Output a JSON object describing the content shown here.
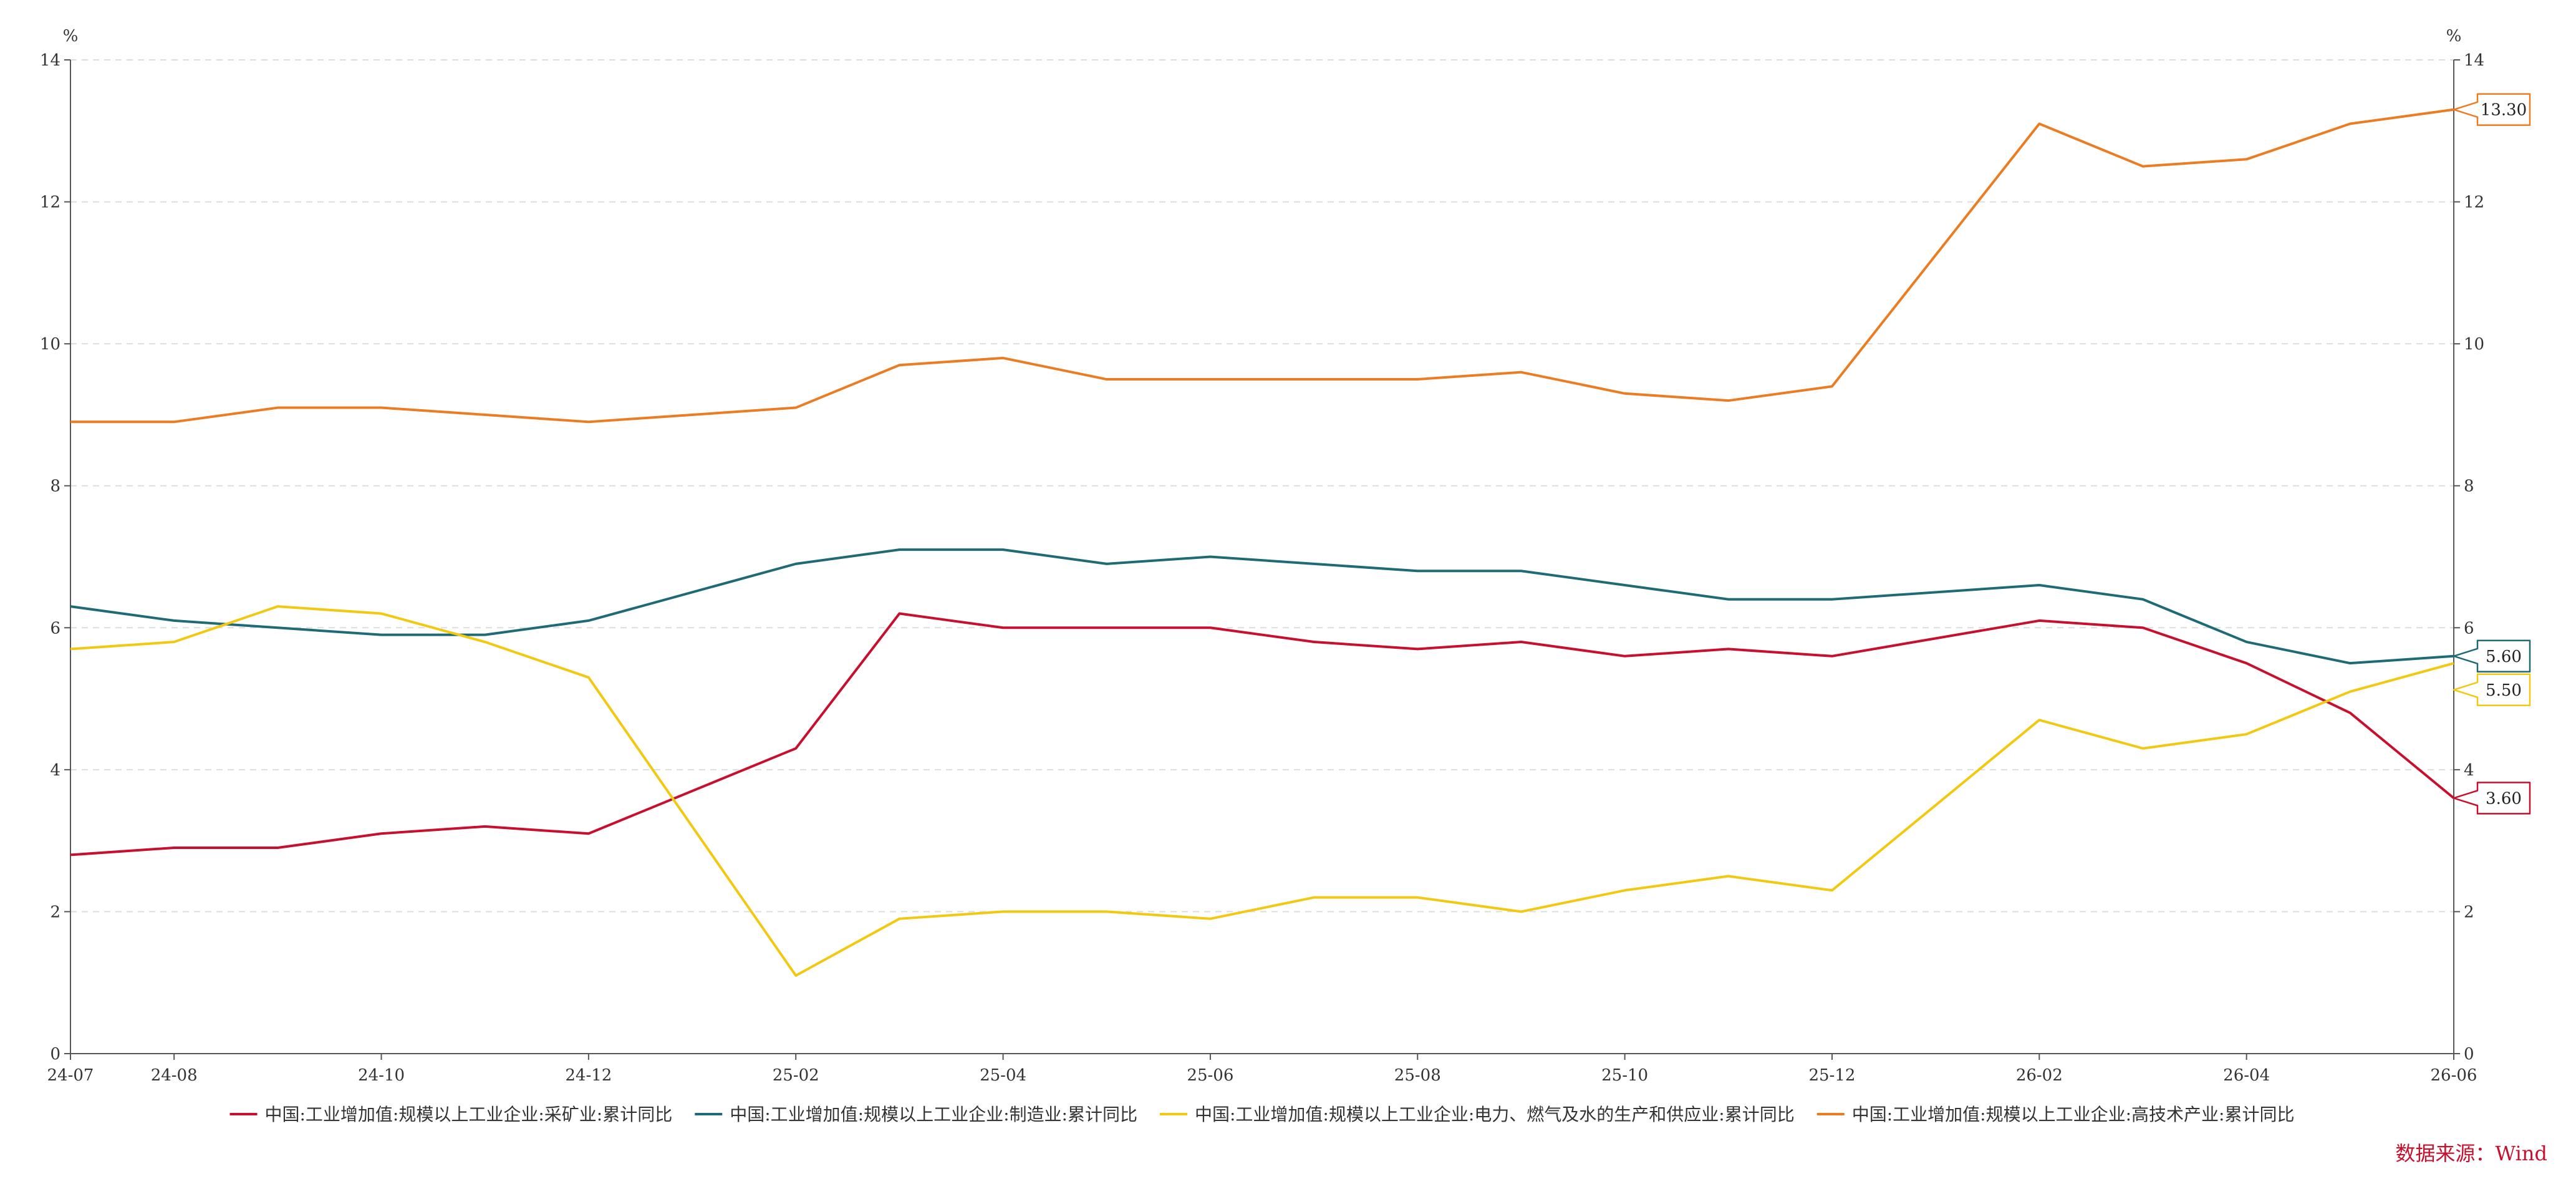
{
  "chart_data": {
    "type": "line",
    "title": "",
    "unit_left": "%",
    "unit_right": "%",
    "categories": [
      "24-07",
      "24-08",
      "24-09",
      "24-10",
      "24-11",
      "24-12",
      "25-01",
      "25-02",
      "25-03",
      "25-04",
      "25-05",
      "25-06",
      "25-07",
      "25-08",
      "25-09",
      "25-10",
      "25-11",
      "25-12",
      "26-01",
      "26-02",
      "26-03",
      "26-04",
      "26-05",
      "26-06"
    ],
    "x_tick_labels": [
      "24-07",
      "24-08",
      "24-10",
      "24-12",
      "25-02",
      "25-04",
      "25-06",
      "25-08",
      "25-10",
      "25-12",
      "26-02",
      "26-04",
      "26-06"
    ],
    "ylim": [
      0,
      14
    ],
    "y_ticks": [
      0,
      2,
      4,
      6,
      8,
      10,
      12,
      14
    ],
    "grid": "horizontal-dashed",
    "legend_position": "bottom",
    "series": [
      {
        "name": "中国:工业增加值:规模以上工业企业:采矿业:累计同比",
        "color": "#c8102e",
        "values": [
          2.8,
          2.9,
          2.9,
          3.1,
          3.2,
          3.1,
          null,
          4.3,
          6.2,
          6.0,
          6.0,
          6.0,
          5.8,
          5.7,
          5.8,
          5.6,
          5.7,
          5.6,
          null,
          6.1,
          6.0,
          5.5,
          4.8,
          3.6
        ],
        "end_label": "3.60"
      },
      {
        "name": "中国:工业增加值:规模以上工业企业:制造业:累计同比",
        "color": "#1f6b75",
        "values": [
          6.3,
          6.1,
          6.0,
          5.9,
          5.9,
          6.1,
          null,
          6.9,
          7.1,
          7.1,
          6.9,
          7.0,
          6.9,
          6.8,
          6.8,
          6.6,
          6.4,
          6.4,
          null,
          6.6,
          6.4,
          5.8,
          5.5,
          5.6
        ],
        "end_label": "5.60"
      },
      {
        "name": "中国:工业增加值:规模以上工业企业:电力、燃气及水的生产和供应业:累计同比",
        "color": "#f2c811",
        "values": [
          5.7,
          5.8,
          6.3,
          6.2,
          5.8,
          5.3,
          null,
          1.1,
          1.9,
          2.0,
          2.0,
          1.9,
          2.2,
          2.2,
          2.0,
          2.3,
          2.5,
          2.3,
          null,
          4.7,
          4.3,
          4.5,
          5.1,
          5.5
        ],
        "end_label": "5.50"
      },
      {
        "name": "中国:工业增加值:规模以上工业企业:高技术产业:累计同比",
        "color": "#ec7c22",
        "values": [
          8.9,
          8.9,
          9.1,
          9.1,
          9.0,
          8.9,
          null,
          9.1,
          9.7,
          9.8,
          9.5,
          9.5,
          9.5,
          9.5,
          9.6,
          9.3,
          9.2,
          9.4,
          null,
          13.1,
          12.5,
          12.6,
          13.1,
          13.3
        ],
        "end_label": "13.30"
      }
    ],
    "source": "数据来源：Wind"
  }
}
